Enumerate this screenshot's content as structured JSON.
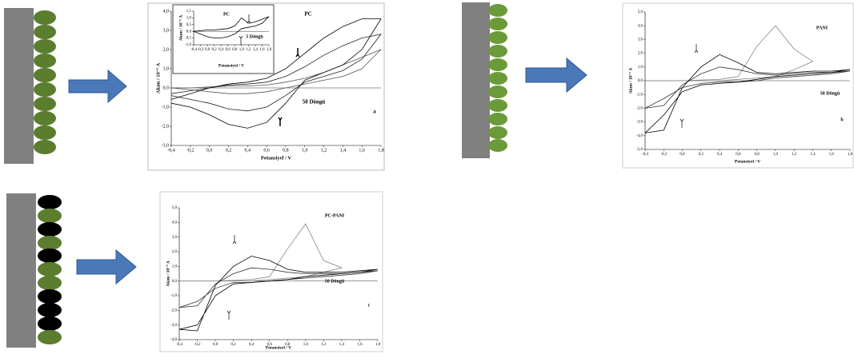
{
  "chart_data": [
    {
      "type": "line",
      "xlabel": "Potansiyel / V",
      "ylabel": "Akım / 10⁻⁵ A",
      "annotations": [
        "PC",
        "50 Döngü",
        "a"
      ],
      "xlim": [
        -0.4,
        1.8
      ],
      "ylim": [
        -3,
        4
      ],
      "xticks": [
        {
          "value": -0.4,
          "label": "-0,4"
        },
        {
          "value": -0.2,
          "label": "-0,2"
        },
        {
          "value": 0,
          "label": "0,0"
        },
        {
          "value": 0.2,
          "label": "0,2"
        },
        {
          "value": 0.4,
          "label": "0,4"
        },
        {
          "value": 0.6,
          "label": "0,6"
        },
        {
          "value": 0.8,
          "label": "0,8"
        },
        {
          "value": 1,
          "label": "1,0"
        },
        {
          "value": 1.2,
          "label": "1,2"
        },
        {
          "value": 1.4,
          "label": "1,4"
        },
        {
          "value": 1.6,
          "label": "1,6"
        },
        {
          "value": 1.8,
          "label": "1,8"
        }
      ],
      "yticks": [
        {
          "value": -3,
          "label": "-3,0"
        },
        {
          "value": -2,
          "label": "-2,0"
        },
        {
          "value": -1,
          "label": "-1,0"
        },
        {
          "value": 0,
          "label": "0,0"
        },
        {
          "value": 1,
          "label": "1,0"
        },
        {
          "value": 2,
          "label": "2,0"
        },
        {
          "value": 3,
          "label": "3,0"
        },
        {
          "value": 4,
          "label": "4,0"
        }
      ],
      "series": [
        {
          "color": "#555555",
          "x": [
            -0.4,
            -0.2,
            0,
            0.2,
            0.4,
            0.6,
            0.8,
            1,
            1.2,
            1.4,
            1.6,
            1.8,
            1.6,
            1.4,
            1.2,
            1,
            0.8,
            0.6,
            0.4,
            0.2,
            0,
            -0.2,
            -0.4
          ],
          "values": [
            0,
            0,
            0.05,
            0.1,
            0.1,
            0.15,
            0.3,
            0.5,
            0.8,
            1.2,
            1.6,
            2,
            1,
            0.6,
            0.4,
            0.2,
            0,
            -0.2,
            -0.3,
            -0.3,
            -0.2,
            -0.1,
            0
          ]
        },
        {
          "color": "#222222",
          "x": [
            -0.4,
            -0.2,
            0,
            0.2,
            0.4,
            0.6,
            0.8,
            1,
            1.2,
            1.4,
            1.6,
            1.8,
            1.6,
            1.4,
            1.2,
            1,
            0.8,
            0.6,
            0.4,
            0.2,
            0,
            -0.2,
            -0.4
          ],
          "values": [
            -0.3,
            -0.15,
            0,
            0.15,
            0.2,
            0.3,
            0.6,
            1.1,
            1.7,
            2.2,
            2.6,
            2.8,
            1.5,
            0.9,
            0.6,
            0.3,
            -0.4,
            -1,
            -1.2,
            -1.1,
            -0.8,
            -0.6,
            -0.4
          ]
        },
        {
          "color": "#000000",
          "x": [
            -0.4,
            -0.2,
            0,
            0.2,
            0.4,
            0.6,
            0.8,
            1,
            1.2,
            1.4,
            1.6,
            1.8,
            1.6,
            1.4,
            1.2,
            1,
            0.8,
            0.6,
            0.4,
            0.2,
            0,
            -0.2,
            -0.4
          ],
          "values": [
            -0.6,
            -0.3,
            0,
            0.2,
            0.3,
            0.5,
            1,
            1.8,
            2.6,
            3.2,
            3.6,
            3.6,
            2,
            1.2,
            0.8,
            0.4,
            -0.8,
            -1.8,
            -2.1,
            -1.9,
            -1.4,
            -1,
            -0.8
          ]
        }
      ]
    },
    {
      "type": "line",
      "xlabel": "Potansiyel / V",
      "ylabel": "Akım / 10⁻⁵ A",
      "annotations": [
        "PC",
        "5 Döngü"
      ],
      "xlim": [
        -0.4,
        1.8
      ],
      "ylim": [
        -1,
        1.5
      ],
      "xticks": [
        {
          "value": -0.4,
          "label": "-0,4"
        },
        {
          "value": -0.2,
          "label": "-0,2"
        },
        {
          "value": 0,
          "label": "0,0"
        },
        {
          "value": 0.2,
          "label": "0,2"
        },
        {
          "value": 0.4,
          "label": "0,4"
        },
        {
          "value": 0.6,
          "label": "0,6"
        },
        {
          "value": 0.8,
          "label": "0,8"
        },
        {
          "value": 1,
          "label": "1,0"
        },
        {
          "value": 1.2,
          "label": "1,2"
        },
        {
          "value": 1.4,
          "label": "1,4"
        },
        {
          "value": 1.6,
          "label": "1,6"
        },
        {
          "value": 1.8,
          "label": "1,8"
        }
      ],
      "yticks": [
        {
          "value": -1,
          "label": "-1,0"
        },
        {
          "value": -0.5,
          "label": "-0,5"
        },
        {
          "value": 0,
          "label": "0,0"
        },
        {
          "value": 0.5,
          "label": "0,5"
        },
        {
          "value": 1,
          "label": "1,0"
        },
        {
          "value": 1.5,
          "label": "1,5"
        }
      ],
      "series": [
        {
          "color": "#000000",
          "x": [
            -0.4,
            -0.2,
            0,
            0.2,
            0.4,
            0.6,
            0.8,
            1,
            1.2,
            1.4,
            1.6,
            1.8,
            1.6,
            1.4,
            1.2,
            1,
            0.8,
            0.6,
            0.4,
            0.2,
            0,
            -0.2,
            -0.4
          ],
          "values": [
            0,
            0.05,
            0.1,
            0.1,
            0.15,
            0.2,
            0.4,
            1,
            0.6,
            0.7,
            0.9,
            1.1,
            0.6,
            0.4,
            0.3,
            0.2,
            -0.2,
            -0.4,
            -0.5,
            -0.5,
            -0.4,
            -0.2,
            0
          ]
        }
      ]
    },
    {
      "type": "line",
      "xlabel": "Potansiyel / V",
      "ylabel": "Akım / 10⁻⁵ A",
      "annotations": [
        "PANI",
        "50 Döngü",
        "b"
      ],
      "xlim": [
        -0.4,
        1.8
      ],
      "ylim": [
        -5,
        5
      ],
      "xticks": [
        {
          "value": -0.4,
          "label": "-0,4"
        },
        {
          "value": -0.2,
          "label": "-0,2"
        },
        {
          "value": 0,
          "label": "0,0"
        },
        {
          "value": 0.2,
          "label": "0,2"
        },
        {
          "value": 0.4,
          "label": "0,4"
        },
        {
          "value": 0.6,
          "label": "0,6"
        },
        {
          "value": 0.8,
          "label": "0,8"
        },
        {
          "value": 1,
          "label": "1,0"
        },
        {
          "value": 1.2,
          "label": "1,2"
        },
        {
          "value": 1.4,
          "label": "1,4"
        },
        {
          "value": 1.6,
          "label": "1,6"
        },
        {
          "value": 1.8,
          "label": "1,8"
        }
      ],
      "yticks": [
        {
          "value": -5,
          "label": "-5,0"
        },
        {
          "value": -4,
          "label": "-4,0"
        },
        {
          "value": -3,
          "label": "-3,0"
        },
        {
          "value": -2,
          "label": "-2,0"
        },
        {
          "value": -1,
          "label": "-1,0"
        },
        {
          "value": 0,
          "label": "0,0"
        },
        {
          "value": 1,
          "label": "1,0"
        },
        {
          "value": 2,
          "label": "2,0"
        },
        {
          "value": 3,
          "label": "3,0"
        },
        {
          "value": 4,
          "label": "4,0"
        },
        {
          "value": 5,
          "label": "5,0"
        }
      ],
      "series": [
        {
          "color": "#888888",
          "x": [
            -0.4,
            -0.2,
            0,
            0.2,
            0.4,
            0.6,
            0.8,
            1,
            1.2,
            1.4,
            1.2,
            1,
            0.8,
            0.6,
            0.4,
            0.2,
            0,
            -0.2,
            -0.4
          ],
          "values": [
            0,
            0,
            0,
            0.05,
            0.1,
            0.3,
            2.5,
            4,
            2.3,
            1.4,
            0.8,
            0.3,
            0.2,
            0.1,
            0,
            0,
            0,
            0,
            0
          ]
        },
        {
          "color": "#333333",
          "x": [
            -0.4,
            -0.2,
            0,
            0.2,
            0.4,
            0.6,
            0.8,
            1,
            1.2,
            1.4,
            1.6,
            1.8,
            1.6,
            1.4,
            1.2,
            1,
            0.8,
            0.6,
            0.4,
            0.2,
            0,
            -0.2,
            -0.4
          ],
          "values": [
            -2,
            -1.8,
            -0.3,
            0.5,
            1,
            0.8,
            0.5,
            0.4,
            0.5,
            0.6,
            0.6,
            0.7,
            0.5,
            0.4,
            0.3,
            0.2,
            0,
            -0.1,
            -0.1,
            -0.2,
            -0.5,
            -1.3,
            -2
          ]
        },
        {
          "color": "#000000",
          "x": [
            -0.4,
            -0.2,
            0,
            0.2,
            0.4,
            0.6,
            0.8,
            1,
            1.2,
            1.4,
            1.6,
            1.8,
            1.6,
            1.4,
            1.2,
            1,
            0.8,
            0.6,
            0.4,
            0.2,
            0,
            -0.2,
            -0.4
          ],
          "values": [
            -3.8,
            -3.6,
            -0.5,
            1,
            1.9,
            1.3,
            0.6,
            0.5,
            0.6,
            0.7,
            0.7,
            0.8,
            0.6,
            0.5,
            0.4,
            0.3,
            0.1,
            -0.1,
            -0.2,
            -0.3,
            -0.8,
            -2.5,
            -3.8
          ]
        }
      ]
    },
    {
      "type": "line",
      "xlabel": "Potansiyel / V",
      "ylabel": "Akım / 10⁻⁵ A",
      "annotations": [
        "PC-PANI",
        "50 Döngü",
        "c"
      ],
      "xlim": [
        -0.4,
        1.8
      ],
      "ylim": [
        -4,
        5
      ],
      "xticks": [
        {
          "value": -0.4,
          "label": "-0,4"
        },
        {
          "value": -0.2,
          "label": "-0,2"
        },
        {
          "value": 0,
          "label": "0,0"
        },
        {
          "value": 0.2,
          "label": "0,2"
        },
        {
          "value": 0.4,
          "label": "0,4"
        },
        {
          "value": 0.6,
          "label": "0,6"
        },
        {
          "value": 0.8,
          "label": "0,8"
        },
        {
          "value": 1,
          "label": "1,0"
        },
        {
          "value": 1.2,
          "label": "1,2"
        },
        {
          "value": 1.4,
          "label": "1,4"
        },
        {
          "value": 1.6,
          "label": "1,6"
        },
        {
          "value": 1.8,
          "label": "1,8"
        }
      ],
      "yticks": [
        {
          "value": -4,
          "label": "-4,0"
        },
        {
          "value": -3,
          "label": "-3,0"
        },
        {
          "value": -2,
          "label": "-2,0"
        },
        {
          "value": -1,
          "label": "-1,0"
        },
        {
          "value": 0,
          "label": "0,0"
        },
        {
          "value": 1,
          "label": "1,0"
        },
        {
          "value": 2,
          "label": "2,0"
        },
        {
          "value": 3,
          "label": "3,0"
        },
        {
          "value": 4,
          "label": "4,0"
        },
        {
          "value": 5,
          "label": "5,0"
        }
      ],
      "series": [
        {
          "color": "#888888",
          "x": [
            -0.4,
            -0.2,
            0,
            0.2,
            0.4,
            0.6,
            0.8,
            1,
            1.2,
            1.4,
            1.2,
            1,
            0.8,
            0.6,
            0.4,
            0.2,
            0,
            -0.2,
            -0.4
          ],
          "values": [
            0,
            0,
            0,
            0.05,
            0.1,
            0.3,
            2.2,
            3.9,
            1.4,
            0.9,
            0.6,
            0.3,
            0.2,
            0.1,
            0,
            0,
            0,
            0,
            0
          ]
        },
        {
          "color": "#333333",
          "x": [
            -0.4,
            -0.2,
            0,
            0.2,
            0.4,
            0.6,
            0.8,
            1,
            1.2,
            1.4,
            1.6,
            1.8,
            1.6,
            1.4,
            1.2,
            1,
            0.8,
            0.6,
            0.4,
            0.2,
            0,
            -0.2,
            -0.4
          ],
          "values": [
            -1.8,
            -1.7,
            -0.2,
            0.5,
            0.9,
            0.8,
            0.6,
            0.5,
            0.5,
            0.5,
            0.6,
            0.7,
            0.5,
            0.4,
            0.3,
            0.2,
            0.1,
            0,
            -0.1,
            -0.1,
            -0.5,
            -1.4,
            -1.8
          ]
        },
        {
          "color": "#000000",
          "x": [
            -0.4,
            -0.2,
            0,
            0.2,
            0.4,
            0.6,
            0.8,
            1,
            1.2,
            1.4,
            1.6,
            1.8,
            1.6,
            1.4,
            1.2,
            1,
            0.8,
            0.6,
            0.4,
            0.2,
            0,
            -0.2,
            -0.4
          ],
          "values": [
            -3.3,
            -3.4,
            -0.3,
            1,
            1.7,
            1.4,
            0.8,
            0.6,
            0.6,
            0.6,
            0.7,
            0.8,
            0.6,
            0.5,
            0.4,
            0.3,
            0.1,
            0,
            -0.1,
            -0.2,
            -1,
            -3,
            -3.3
          ]
        }
      ]
    }
  ]
}
